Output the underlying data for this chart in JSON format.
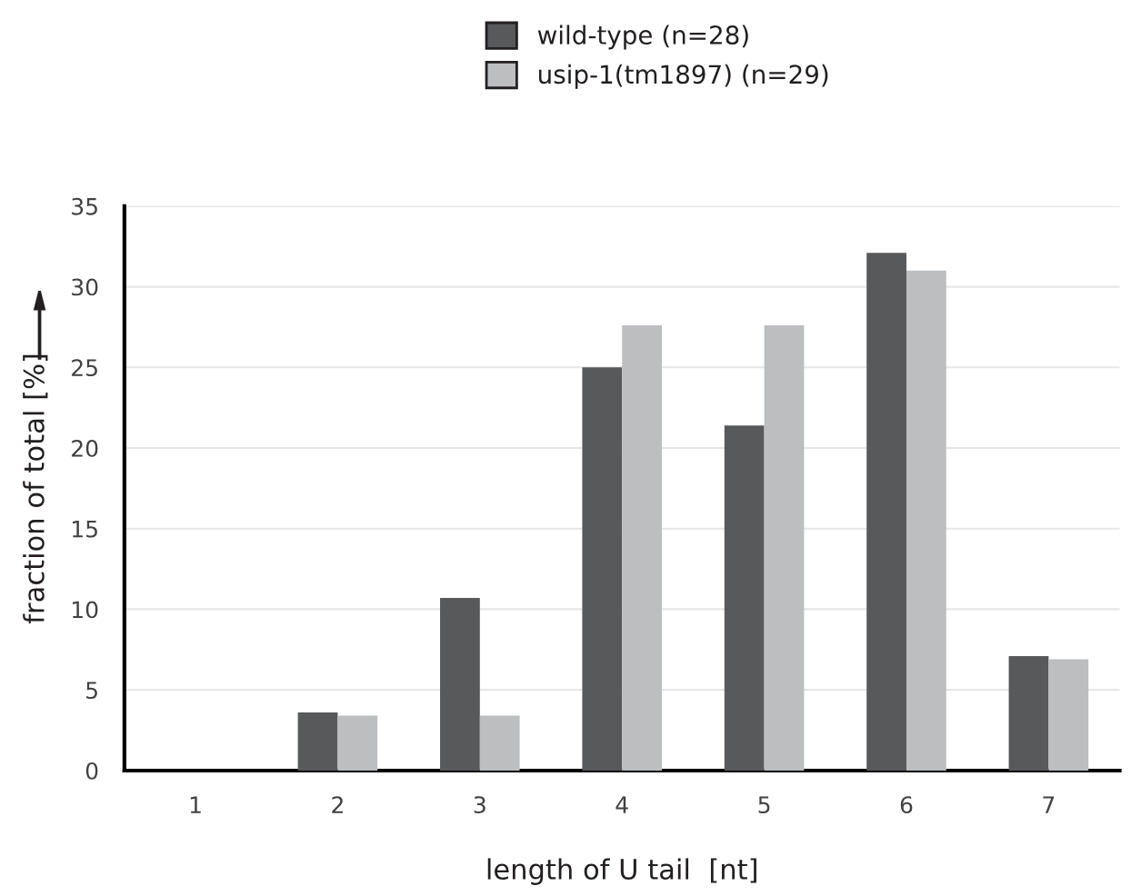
{
  "chart_data": {
    "type": "bar",
    "xlabel": "length of U tail  [nt]",
    "ylabel": "fraction of total [%]",
    "categories": [
      "1",
      "2",
      "3",
      "4",
      "5",
      "6",
      "7"
    ],
    "series": [
      {
        "name": "wild-type (n=28)",
        "color": "#58595b",
        "values": [
          0,
          3.6,
          10.7,
          25,
          21.4,
          32.1,
          7.1
        ]
      },
      {
        "name": "usip-1(tm1897) (n=29)",
        "color": "#bcbec0",
        "values": [
          0,
          3.4,
          3.4,
          27.6,
          27.6,
          31,
          6.9
        ]
      }
    ],
    "ylim": [
      0,
      35
    ],
    "yticks": [
      0,
      5,
      10,
      15,
      20,
      25,
      30,
      35
    ],
    "grid": "y",
    "legend": "top"
  }
}
